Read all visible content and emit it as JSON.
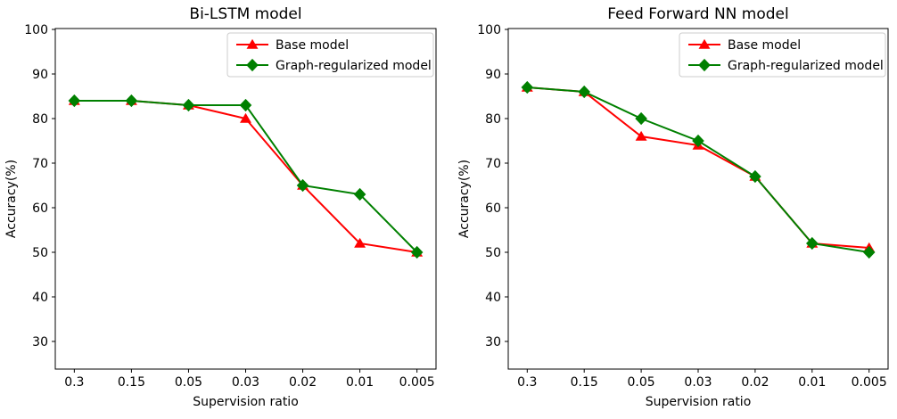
{
  "figure": {
    "background": "#ffffff",
    "panels": 2
  },
  "chart_data": [
    {
      "type": "line",
      "title": "Bi-LSTM model",
      "xlabel": "Supervision ratio",
      "ylabel": "Accuracy(%)",
      "categories": [
        "0.3",
        "0.15",
        "0.05",
        "0.03",
        "0.02",
        "0.01",
        "0.005"
      ],
      "yticks": [
        30,
        40,
        50,
        60,
        70,
        80,
        90,
        100
      ],
      "ylim": [
        24,
        100
      ],
      "grid": false,
      "legend_position": "upper right",
      "series": [
        {
          "name": "Base model",
          "color": "#ff0000",
          "marker": "triangle-up",
          "values": [
            84,
            84,
            83,
            80,
            65,
            52,
            50
          ]
        },
        {
          "name": "Graph-regularized model",
          "color": "#008000",
          "marker": "diamond",
          "values": [
            84,
            84,
            83,
            83,
            65,
            63,
            50
          ]
        }
      ]
    },
    {
      "type": "line",
      "title": "Feed Forward NN model",
      "xlabel": "Supervision ratio",
      "ylabel": "Accuracy(%)",
      "categories": [
        "0.3",
        "0.15",
        "0.05",
        "0.03",
        "0.02",
        "0.01",
        "0.005"
      ],
      "yticks": [
        30,
        40,
        50,
        60,
        70,
        80,
        90,
        100
      ],
      "ylim": [
        24,
        100
      ],
      "grid": false,
      "legend_position": "upper right",
      "series": [
        {
          "name": "Base model",
          "color": "#ff0000",
          "marker": "triangle-up",
          "values": [
            87,
            86,
            76,
            74,
            67,
            52,
            51
          ]
        },
        {
          "name": "Graph-regularized model",
          "color": "#008000",
          "marker": "diamond",
          "values": [
            87,
            86,
            80,
            75,
            67,
            52,
            50
          ]
        }
      ]
    }
  ]
}
